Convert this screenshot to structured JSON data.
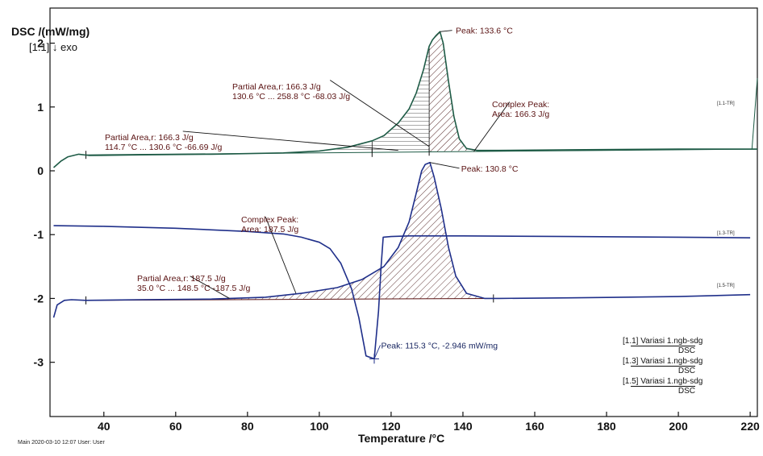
{
  "chart_data": {
    "type": "line",
    "ylabel": "DSC /(mW/mg)",
    "sublabel": "[1.1] ↓ exo",
    "xlabel": "Temperature /°C",
    "xlim": [
      25,
      222
    ],
    "ylim": [
      -3.85,
      2.55
    ],
    "x_ticks": [
      "40",
      "60",
      "80",
      "100",
      "120",
      "140",
      "160",
      "180",
      "200",
      "220"
    ],
    "y_ticks": [
      "2",
      "1",
      "0",
      "-1",
      "-2",
      "-3"
    ],
    "series": [
      {
        "name": "[1.1] Variasi 1.ngb-sdg DSC",
        "color": "#1e5b46",
        "x": [
          26,
          28,
          30,
          33,
          36,
          50,
          70,
          90,
          100,
          108,
          114.7,
          118,
          122,
          125,
          127,
          129,
          130.6,
          131.5,
          132.5,
          133.6,
          134.5,
          136,
          137.5,
          139,
          141,
          144,
          150,
          170,
          200,
          222
        ],
        "y": [
          0.05,
          0.15,
          0.22,
          0.26,
          0.24,
          0.25,
          0.26,
          0.28,
          0.31,
          0.37,
          0.47,
          0.55,
          0.75,
          0.97,
          1.22,
          1.58,
          1.95,
          2.05,
          2.12,
          2.18,
          2.0,
          1.4,
          0.85,
          0.5,
          0.35,
          0.32,
          0.32,
          0.33,
          0.34,
          0.34
        ]
      },
      {
        "name": "[1.3] Variasi 1.ngb-sdg DSC",
        "color": "#1f2f8a",
        "x": [
          26,
          40,
          60,
          80,
          90,
          95,
          100,
          103,
          106,
          109,
          111,
          113,
          115.3,
          116.5,
          117.2,
          117.8,
          120,
          125,
          140,
          170,
          200,
          220
        ],
        "y": [
          -0.86,
          -0.87,
          -0.9,
          -0.95,
          -0.99,
          -1.04,
          -1.12,
          -1.22,
          -1.45,
          -1.85,
          -2.3,
          -2.9,
          -2.946,
          -2.2,
          -1.5,
          -1.04,
          -1.03,
          -1.02,
          -1.02,
          -1.03,
          -1.04,
          -1.05
        ]
      },
      {
        "name": "[1.5] Variasi 1.ngb-sdg DSC",
        "color": "#1f2f8a",
        "x": [
          26,
          27,
          29,
          31,
          35,
          50,
          70,
          85,
          95,
          105,
          112,
          118,
          122,
          125,
          127,
          128.5,
          129.5,
          130.8,
          132,
          134,
          136,
          138,
          141,
          146,
          150,
          170,
          200,
          220
        ],
        "y": [
          -2.3,
          -2.1,
          -2.03,
          -2.02,
          -2.03,
          -2.02,
          -2.01,
          -1.98,
          -1.92,
          -1.83,
          -1.7,
          -1.5,
          -1.2,
          -0.8,
          -0.35,
          0.0,
          0.1,
          0.13,
          -0.1,
          -0.6,
          -1.2,
          -1.65,
          -1.92,
          -2.0,
          -2.0,
          -1.99,
          -1.97,
          -1.94
        ]
      }
    ],
    "annotations": [
      {
        "lines": [
          "Peak: 133.6 °C"
        ],
        "color": "#5a1212"
      },
      {
        "lines": [
          "Partial Area,r:            166.3 J/g",
          "130.6 °C ... 258.8 °C   -68.03 J/g"
        ],
        "color": "#5a1212"
      },
      {
        "lines": [
          "Complex Peak:",
          "Area:  166.3 J/g"
        ],
        "color": "#5a1212"
      },
      {
        "lines": [
          "Partial Area,r:            166.3 J/g",
          "114.7 °C ... 130.6 °C   -66.69 J/g"
        ],
        "color": "#5a1212"
      },
      {
        "lines": [
          "Peak:  130.8 °C"
        ],
        "color": "#5a1212"
      },
      {
        "lines": [
          "Complex Peak:",
          "Area:  187.5 J/g"
        ],
        "color": "#5a1212"
      },
      {
        "lines": [
          "Partial Area,r:            187.5 J/g",
          "35.0 °C ... 148.5 °C  -187.5 J/g"
        ],
        "color": "#5a1212"
      },
      {
        "lines": [
          "Peak: 115.3 °C, -2.946 mW/mg"
        ],
        "color": "#14225e"
      }
    ],
    "curve_tags": [
      "[1.1-TR]",
      "[1.3-TR]",
      "[1.5-TR]"
    ],
    "legend": [
      {
        "id": "[1.1]",
        "text": "Variasi 1.ngb-sdg",
        "sub": "DSC"
      },
      {
        "id": "[1.3]",
        "text": "Variasi 1.ngb-sdg",
        "sub": "DSC"
      },
      {
        "id": "[1.5]",
        "text": "Variasi 1.ngb-sdg",
        "sub": "DSC"
      }
    ],
    "legend_position": "bottom-right",
    "grid": false
  },
  "footer": "Main   2020-03-10 12:07   User: User"
}
